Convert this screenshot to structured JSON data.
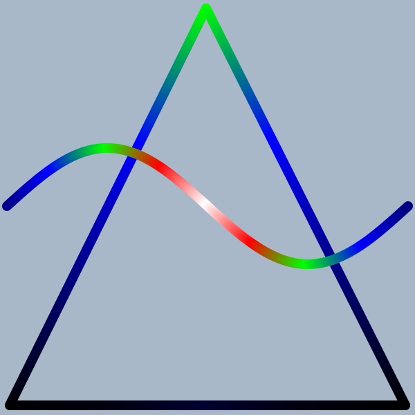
{
  "scene": {
    "background_color": "#a8b8c8",
    "shapes": [
      {
        "name": "triangle",
        "kind": "outline",
        "gradient_stops": [
          "#000000",
          "#000080",
          "#0000ff",
          "#00ff00",
          "#0000ff",
          "#000080",
          "#000000"
        ]
      },
      {
        "name": "wave-curve",
        "kind": "sine-wave",
        "gradient_stops": [
          "#000080",
          "#0000ff",
          "#00ff00",
          "#ff0000",
          "#ffffff",
          "#ff0000",
          "#00ff00",
          "#0000ff",
          "#000080"
        ]
      }
    ]
  }
}
